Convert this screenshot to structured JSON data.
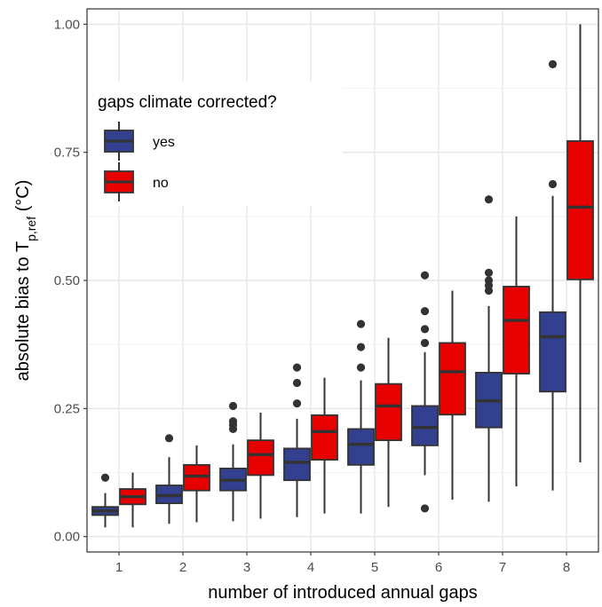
{
  "chart_data": {
    "type": "boxplot",
    "title": "",
    "xlabel": "number of introduced annual gaps",
    "ylabel": {
      "prefix": "absolute bias to T",
      "subscript": "p,ref",
      "suffix": " (°C)"
    },
    "ylim": [
      -0.03,
      1.03
    ],
    "y_ticks": [
      "0.00",
      "0.25",
      "0.50",
      "0.75",
      "1.00"
    ],
    "categories": [
      "1",
      "2",
      "3",
      "4",
      "5",
      "6",
      "7",
      "8"
    ],
    "grid": true,
    "legend": {
      "title": "gaps climate corrected?",
      "placement": "top-left",
      "entries": [
        "yes",
        "no"
      ]
    },
    "series": [
      {
        "name": "yes",
        "color": "#33408F",
        "boxes": [
          {
            "min": 0.018,
            "q1": 0.042,
            "median": 0.05,
            "q3": 0.058,
            "max": 0.085,
            "outliers": [
              0.115
            ]
          },
          {
            "min": 0.025,
            "q1": 0.065,
            "median": 0.08,
            "q3": 0.1,
            "max": 0.155,
            "outliers": [
              0.192
            ]
          },
          {
            "min": 0.03,
            "q1": 0.09,
            "median": 0.11,
            "q3": 0.133,
            "max": 0.18,
            "outliers": [
              0.21,
              0.218,
              0.225,
              0.255
            ]
          },
          {
            "min": 0.038,
            "q1": 0.11,
            "median": 0.145,
            "q3": 0.172,
            "max": 0.23,
            "outliers": [
              0.26,
              0.3,
              0.33
            ]
          },
          {
            "min": 0.045,
            "q1": 0.14,
            "median": 0.18,
            "q3": 0.21,
            "max": 0.305,
            "outliers": [
              0.33,
              0.37,
              0.415
            ]
          },
          {
            "min": 0.12,
            "q1": 0.178,
            "median": 0.213,
            "q3": 0.255,
            "max": 0.36,
            "outliers": [
              0.055,
              0.378,
              0.405,
              0.44,
              0.51
            ]
          },
          {
            "min": 0.068,
            "q1": 0.213,
            "median": 0.265,
            "q3": 0.32,
            "max": 0.45,
            "outliers": [
              0.48,
              0.49,
              0.5,
              0.515,
              0.658
            ]
          },
          {
            "min": 0.09,
            "q1": 0.283,
            "median": 0.39,
            "q3": 0.438,
            "max": 0.665,
            "outliers": [
              0.688,
              0.922
            ]
          }
        ]
      },
      {
        "name": "no",
        "color": "#E60000",
        "boxes": [
          {
            "min": 0.018,
            "q1": 0.063,
            "median": 0.078,
            "q3": 0.093,
            "max": 0.125,
            "outliers": []
          },
          {
            "min": 0.028,
            "q1": 0.09,
            "median": 0.118,
            "q3": 0.14,
            "max": 0.178,
            "outliers": []
          },
          {
            "min": 0.035,
            "q1": 0.12,
            "median": 0.16,
            "q3": 0.188,
            "max": 0.242,
            "outliers": []
          },
          {
            "min": 0.045,
            "q1": 0.15,
            "median": 0.205,
            "q3": 0.237,
            "max": 0.31,
            "outliers": []
          },
          {
            "min": 0.058,
            "q1": 0.188,
            "median": 0.255,
            "q3": 0.298,
            "max": 0.388,
            "outliers": []
          },
          {
            "min": 0.072,
            "q1": 0.238,
            "median": 0.322,
            "q3": 0.378,
            "max": 0.48,
            "outliers": []
          },
          {
            "min": 0.098,
            "q1": 0.318,
            "median": 0.422,
            "q3": 0.488,
            "max": 0.625,
            "outliers": []
          },
          {
            "min": 0.145,
            "q1": 0.502,
            "median": 0.643,
            "q3": 0.772,
            "max": 1.0,
            "outliers": []
          }
        ]
      }
    ]
  }
}
